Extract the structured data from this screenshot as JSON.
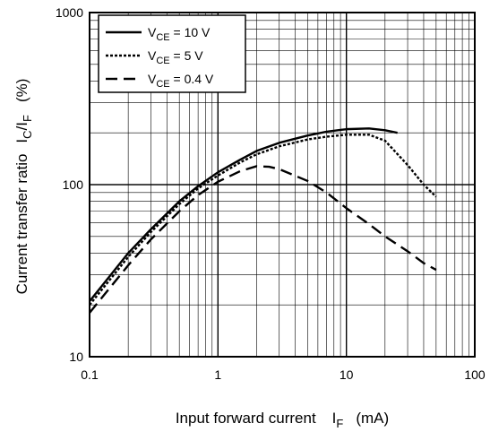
{
  "chart_data": {
    "type": "line",
    "xscale": "log",
    "yscale": "log",
    "xlim": [
      0.1,
      100
    ],
    "ylim": [
      10,
      1000
    ],
    "grid": true,
    "legend_position": "top-left",
    "xlabel": {
      "main": "Input forward current",
      "symbol": "I",
      "subscript": "F",
      "unit": "(mA)"
    },
    "ylabel": {
      "main": "Current transfer ratio",
      "symbol": "I",
      "sub1": "C",
      "slash": "/I",
      "sub2": "F",
      "unit": "(%)"
    },
    "x_tick_labels": [
      "0.1",
      "1",
      "10",
      "100"
    ],
    "y_tick_labels": [
      "10",
      "100",
      "1000"
    ],
    "series": [
      {
        "name": "VCE = 10 V",
        "legend": {
          "prefix": "V",
          "sub": "CE",
          "rest": " = 10 V"
        },
        "dash": "solid",
        "points": [
          [
            0.1,
            21
          ],
          [
            0.2,
            40
          ],
          [
            0.3,
            55
          ],
          [
            0.5,
            80
          ],
          [
            0.7,
            98
          ],
          [
            1,
            118
          ],
          [
            1.5,
            140
          ],
          [
            2,
            157
          ],
          [
            3,
            175
          ],
          [
            5,
            193
          ],
          [
            7,
            203
          ],
          [
            10,
            210
          ],
          [
            15,
            212
          ],
          [
            20,
            207
          ],
          [
            25,
            200
          ]
        ]
      },
      {
        "name": "VCE = 5 V",
        "legend": {
          "prefix": "V",
          "sub": "CE",
          "rest": " =  5  V"
        },
        "dash": "dotted",
        "points": [
          [
            0.1,
            20
          ],
          [
            0.2,
            38
          ],
          [
            0.3,
            53
          ],
          [
            0.5,
            77
          ],
          [
            0.7,
            95
          ],
          [
            1,
            113
          ],
          [
            1.5,
            135
          ],
          [
            2,
            150
          ],
          [
            3,
            167
          ],
          [
            5,
            183
          ],
          [
            7,
            190
          ],
          [
            10,
            195
          ],
          [
            15,
            195
          ],
          [
            20,
            180
          ],
          [
            30,
            130
          ],
          [
            40,
            100
          ],
          [
            50,
            85
          ]
        ]
      },
      {
        "name": "VCE = 0.4 V",
        "legend": {
          "prefix": "V",
          "sub": "CE",
          "rest": " = 0.4 V"
        },
        "dash": "dashed",
        "points": [
          [
            0.1,
            18
          ],
          [
            0.2,
            34
          ],
          [
            0.3,
            48
          ],
          [
            0.5,
            70
          ],
          [
            0.7,
            87
          ],
          [
            1,
            104
          ],
          [
            1.5,
            120
          ],
          [
            2,
            128
          ],
          [
            2.5,
            127
          ],
          [
            3,
            123
          ],
          [
            5,
            105
          ],
          [
            7,
            90
          ],
          [
            10,
            73
          ],
          [
            15,
            59
          ],
          [
            20,
            50
          ],
          [
            30,
            41
          ],
          [
            40,
            35
          ],
          [
            50,
            32
          ]
        ]
      }
    ]
  }
}
